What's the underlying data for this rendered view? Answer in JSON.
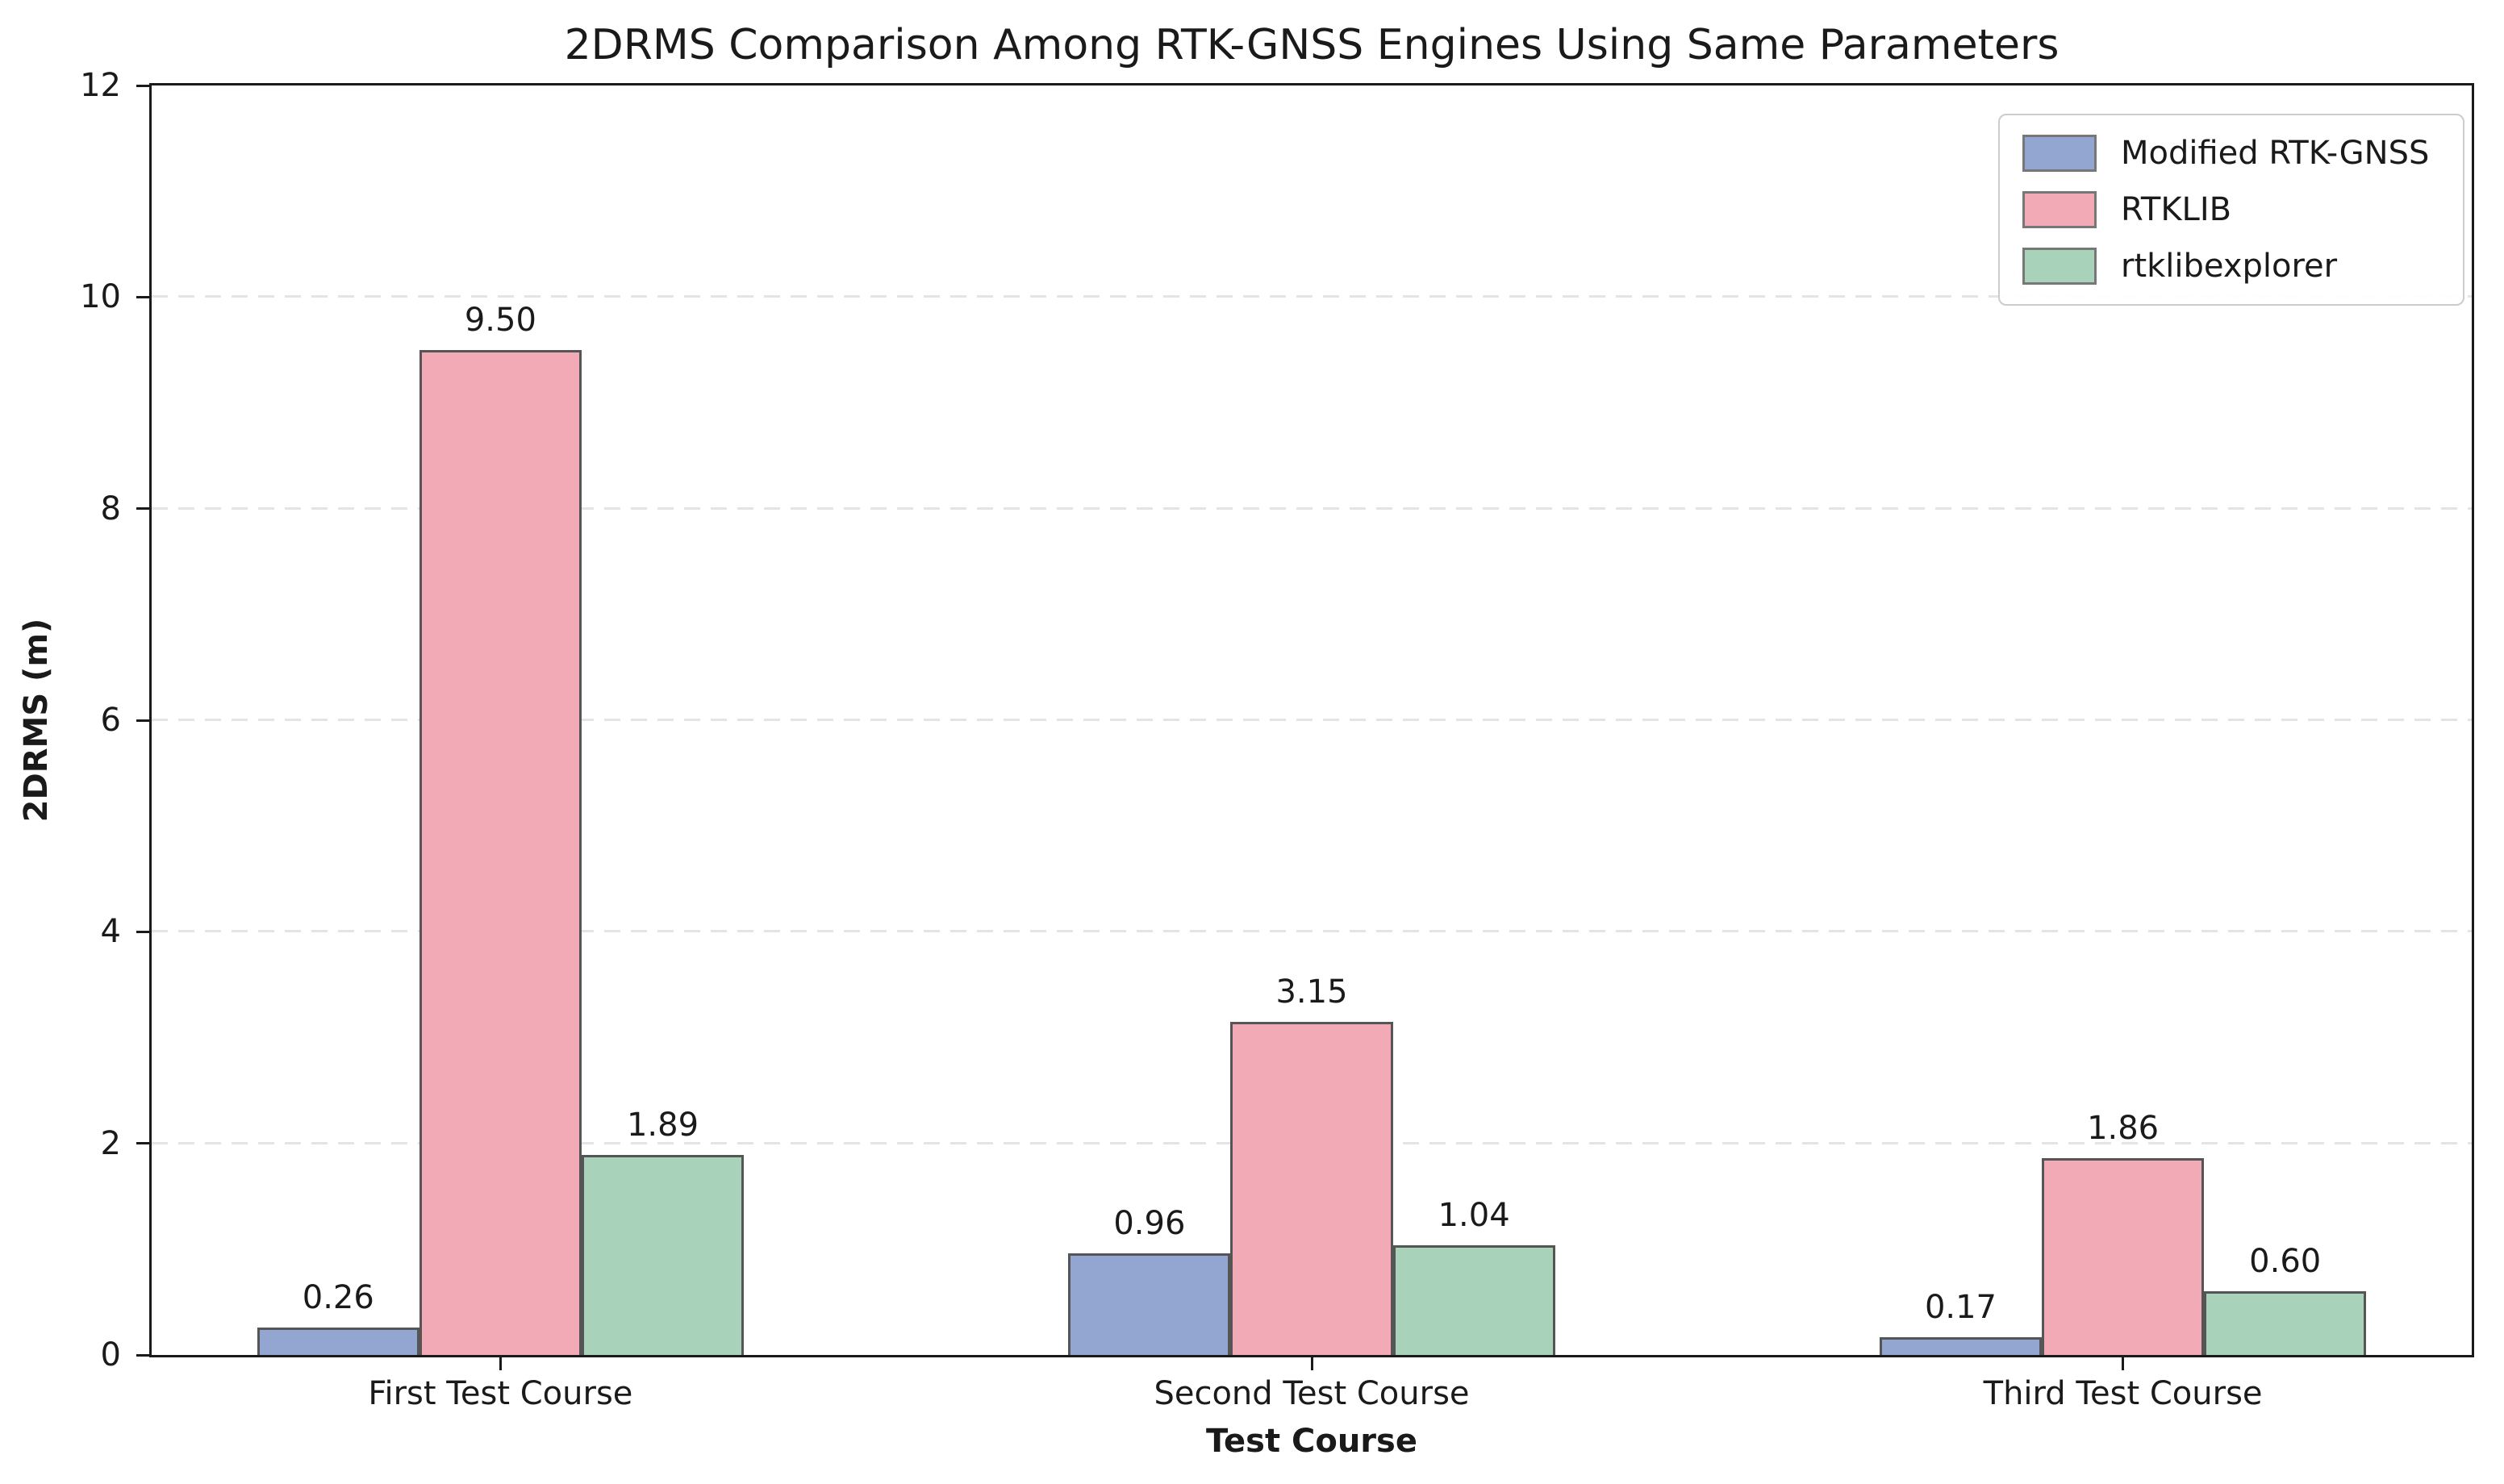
{
  "chart_data": {
    "type": "bar",
    "title": "2DRMS Comparison Among RTK-GNSS Engines Using Same Parameters",
    "xlabel": "Test Course",
    "ylabel": "2DRMS (m)",
    "categories": [
      "First Test Course",
      "Second Test Course",
      "Third Test Course"
    ],
    "series": [
      {
        "name": "Modified RTK-GNSS",
        "color": "#93a6d1",
        "values": [
          0.26,
          0.96,
          0.17
        ]
      },
      {
        "name": "RTKLIB",
        "color": "#f2abb6",
        "values": [
          9.5,
          3.15,
          1.86
        ]
      },
      {
        "name": "rtklibexplorer",
        "color": "#a9d2ba",
        "values": [
          1.89,
          1.04,
          0.6
        ]
      }
    ],
    "bar_value_labels": [
      [
        "0.26",
        "0.96",
        "0.17"
      ],
      [
        "9.50",
        "3.15",
        "1.86"
      ],
      [
        "1.89",
        "1.04",
        "0.60"
      ]
    ],
    "ylim": [
      0,
      12
    ],
    "yticks": [
      "0",
      "2",
      "4",
      "6",
      "8",
      "10",
      "12"
    ],
    "grid": "horizontal-dashed",
    "gridline_color": "#e4e4e4",
    "bar_edge_color": "#555555",
    "axis_color": "#1a1a1a",
    "legend": {
      "position": "upper-right",
      "entries": [
        "Modified RTK-GNSS",
        "RTKLIB",
        "rtklibexplorer"
      ]
    }
  }
}
